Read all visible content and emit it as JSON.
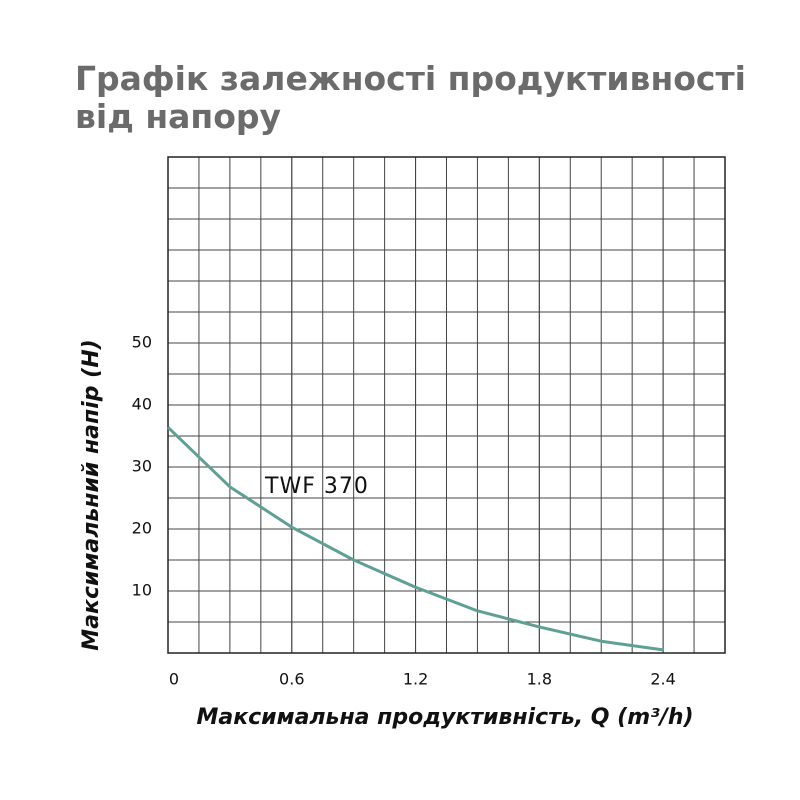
{
  "chart_data": {
    "type": "line",
    "title": "Графік залежності продуктивності від напору",
    "x_label": "Максимальна продуктивність, Q (m³/h)",
    "y_label": "Максимальний напір (Н)",
    "x": [
      0,
      0.3,
      0.6,
      0.9,
      1.2,
      1.5,
      1.8,
      2.1,
      2.4
    ],
    "series": [
      {
        "name": "TWF 370",
        "color": "#5f9f96",
        "values": [
          36.4,
          26.8,
          20.3,
          15.0,
          10.6,
          6.8,
          4.2,
          1.9,
          0.5
        ]
      }
    ],
    "xlim": [
      0,
      2.7
    ],
    "ylim": [
      0,
      80
    ],
    "xticks": [
      0,
      0.6,
      1.2,
      1.8,
      2.4
    ],
    "yticks": [
      10,
      20,
      30,
      40,
      50
    ],
    "grid": true
  }
}
